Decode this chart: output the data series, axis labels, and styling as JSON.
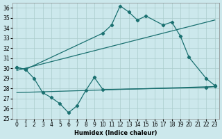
{
  "bg_color": "#cce8ec",
  "grid_color": "#aacccc",
  "line_color": "#1a7070",
  "xlabel": "Humidex (Indice chaleur)",
  "xlim": [
    -0.5,
    23.5
  ],
  "ylim": [
    25,
    36.5
  ],
  "yticks": [
    25,
    26,
    27,
    28,
    29,
    30,
    31,
    32,
    33,
    34,
    35,
    36
  ],
  "xticks": [
    0,
    1,
    2,
    3,
    4,
    5,
    6,
    7,
    8,
    9,
    10,
    11,
    12,
    13,
    14,
    15,
    16,
    17,
    18,
    19,
    20,
    21,
    22,
    23
  ],
  "curve1_x": [
    0,
    1,
    10,
    11,
    12,
    13,
    14,
    15,
    17,
    18,
    19,
    20,
    22,
    23
  ],
  "curve1_y": [
    30.1,
    29.9,
    33.5,
    34.3,
    36.2,
    35.6,
    34.8,
    35.2,
    34.3,
    34.6,
    33.2,
    31.1,
    29.0,
    28.3
  ],
  "curve2_x": [
    0,
    1,
    2,
    3,
    4,
    5,
    6,
    7,
    8,
    9,
    10,
    22,
    23
  ],
  "curve2_y": [
    30.1,
    29.9,
    29.0,
    27.6,
    27.1,
    26.5,
    25.6,
    26.3,
    27.8,
    29.1,
    27.9,
    28.1,
    28.2
  ],
  "trend1_x": [
    0,
    23
  ],
  "trend1_y": [
    29.8,
    34.8
  ],
  "trend2_x": [
    0,
    23
  ],
  "trend2_y": [
    27.6,
    28.2
  ]
}
